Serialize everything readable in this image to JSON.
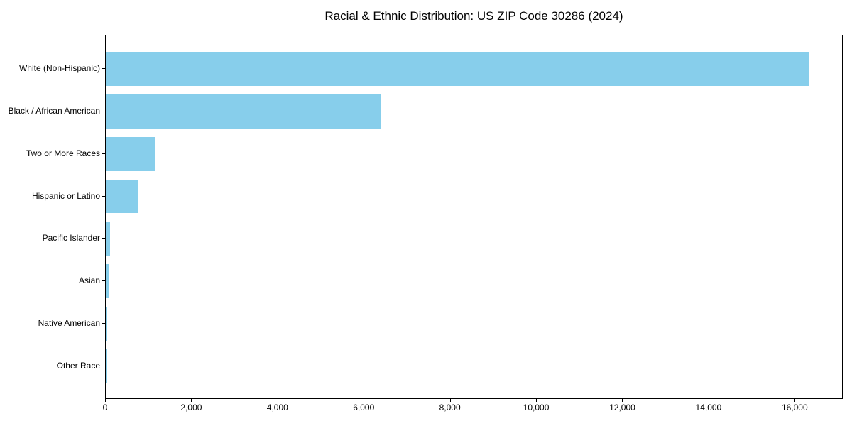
{
  "chart_data": {
    "type": "bar",
    "orientation": "horizontal",
    "title": "Racial & Ethnic Distribution: US ZIP Code 30286 (2024)",
    "categories": [
      "White (Non-Hispanic)",
      "Black / African American",
      "Two or More Races",
      "Hispanic or Latino",
      "Pacific Islander",
      "Asian",
      "Native American",
      "Other Race"
    ],
    "values": [
      16300,
      6385,
      1160,
      740,
      95,
      65,
      25,
      5
    ],
    "xlabel": "",
    "ylabel": "",
    "xlim": [
      0,
      17115
    ],
    "x_ticks": [
      0,
      2000,
      4000,
      6000,
      8000,
      10000,
      12000,
      14000,
      16000
    ],
    "x_tick_labels": [
      "0",
      "2,000",
      "4,000",
      "6,000",
      "8,000",
      "10,000",
      "12,000",
      "14,000",
      "16,000"
    ],
    "bar_color": "#87CEEB",
    "grid": false,
    "legend_position": "none",
    "background_color": "#ffffff",
    "spine_color": "#000000"
  }
}
